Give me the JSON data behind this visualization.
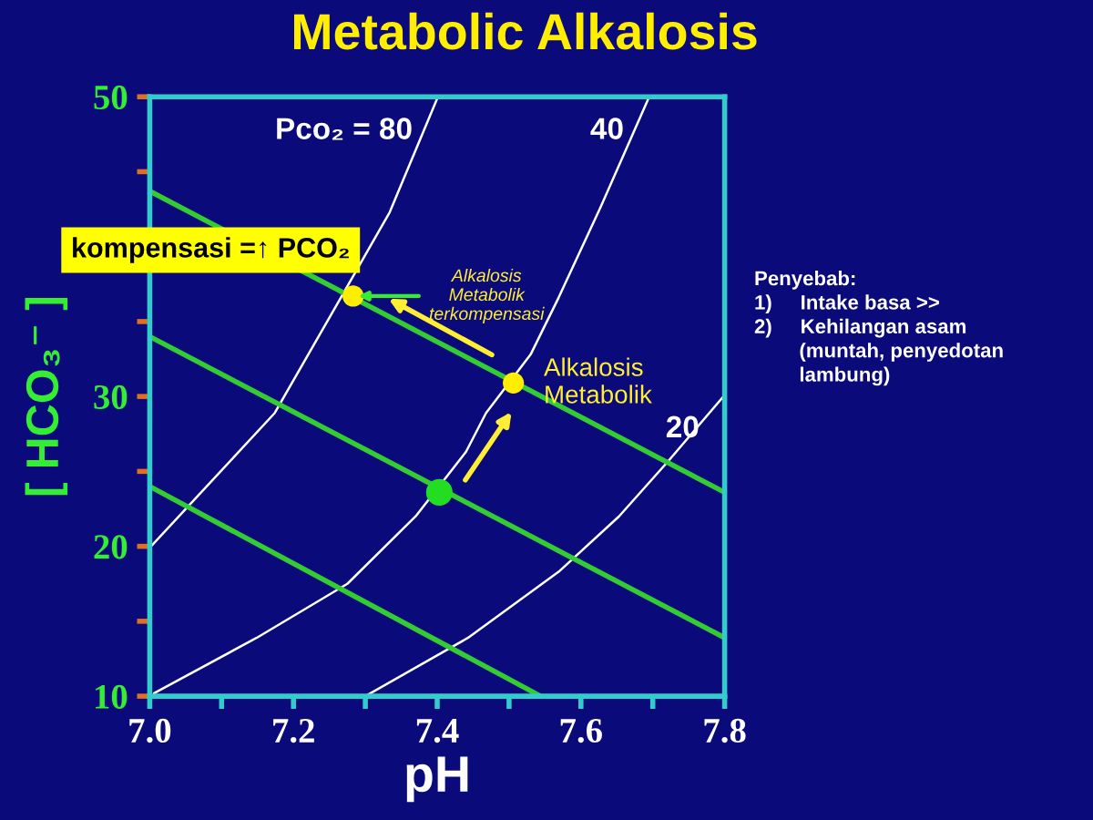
{
  "chart_data": {
    "type": "line",
    "title": "Metabolic Alkalosis",
    "xlabel": "pH",
    "ylabel": "[ HCO₃⁻ ]",
    "xlim": [
      7.0,
      7.8
    ],
    "ylim": [
      10,
      50
    ],
    "xticks": [
      {
        "value": 7.0,
        "label": "7.0"
      },
      {
        "value": 7.1,
        "label": null
      },
      7.2,
      {
        "value": 7.3,
        "label": null
      },
      7.4,
      {
        "value": 7.5,
        "label": null
      },
      7.6,
      {
        "value": 7.7,
        "label": null
      },
      {
        "value": 7.8,
        "label": "7.8"
      }
    ],
    "yticks": [
      10,
      {
        "value": 15,
        "label": null
      },
      20,
      {
        "value": 25,
        "label": null
      },
      30,
      {
        "value": 35,
        "label": null
      },
      {
        "value": 40,
        "label": null
      },
      {
        "value": 45,
        "label": null
      },
      50
    ],
    "grid": false,
    "series": [
      {
        "name": "Pco₂ = 80",
        "color": "#ffffff",
        "x": [
          7.0,
          7.174,
          7.266,
          7.334,
          7.401
        ],
        "values": [
          19.9,
          28.9,
          36.6,
          42.3,
          50
        ]
      },
      {
        "name": "40",
        "color": "#ffffff",
        "x": [
          7.006,
          7.149,
          7.275,
          7.37,
          7.44,
          7.468,
          7.53,
          7.569,
          7.628,
          7.695
        ],
        "values": [
          10.2,
          13.9,
          17.5,
          22.0,
          26.3,
          28.9,
          32.8,
          36.6,
          42.7,
          50
        ]
      },
      {
        "name": "20",
        "color": "#ffffff",
        "x": [
          7.3,
          7.443,
          7.569,
          7.653,
          7.72,
          7.8
        ],
        "values": [
          10,
          13.9,
          18.3,
          22,
          25.6,
          30.1
        ]
      },
      {
        "color": "#33cc33",
        "x": [
          7.0,
          7.8
        ],
        "values": [
          43.7,
          23.6
        ]
      },
      {
        "color": "#33cc33",
        "x": [
          7.0,
          7.8
        ],
        "values": [
          34.0,
          13.9
        ]
      },
      {
        "color": "#33cc33",
        "x": [
          7.0,
          7.544
        ],
        "values": [
          24.0,
          10.0
        ]
      },
      {
        "type": "scatter",
        "x": [
          7.403,
          7.506,
          7.283
        ],
        "values": [
          23.6,
          30.9,
          36.7
        ],
        "colors": [
          "#22dd22",
          "#ffee00",
          "#ffee00"
        ]
      }
    ],
    "annotations": [
      {
        "text": "Alkalosis\nMetabolik\nterkompensasi",
        "x": 7.283,
        "y": 36.7
      },
      {
        "text": "Alkalosis\nMetabolik",
        "x": 7.506,
        "y": 30.9
      },
      "kompensasi =↑ PCO₂",
      "Penyebab:\n1)     Intake basa >>\n2)     Kehilangan asam\n        (muntah, penyedotan\n        lambung)"
    ]
  }
}
